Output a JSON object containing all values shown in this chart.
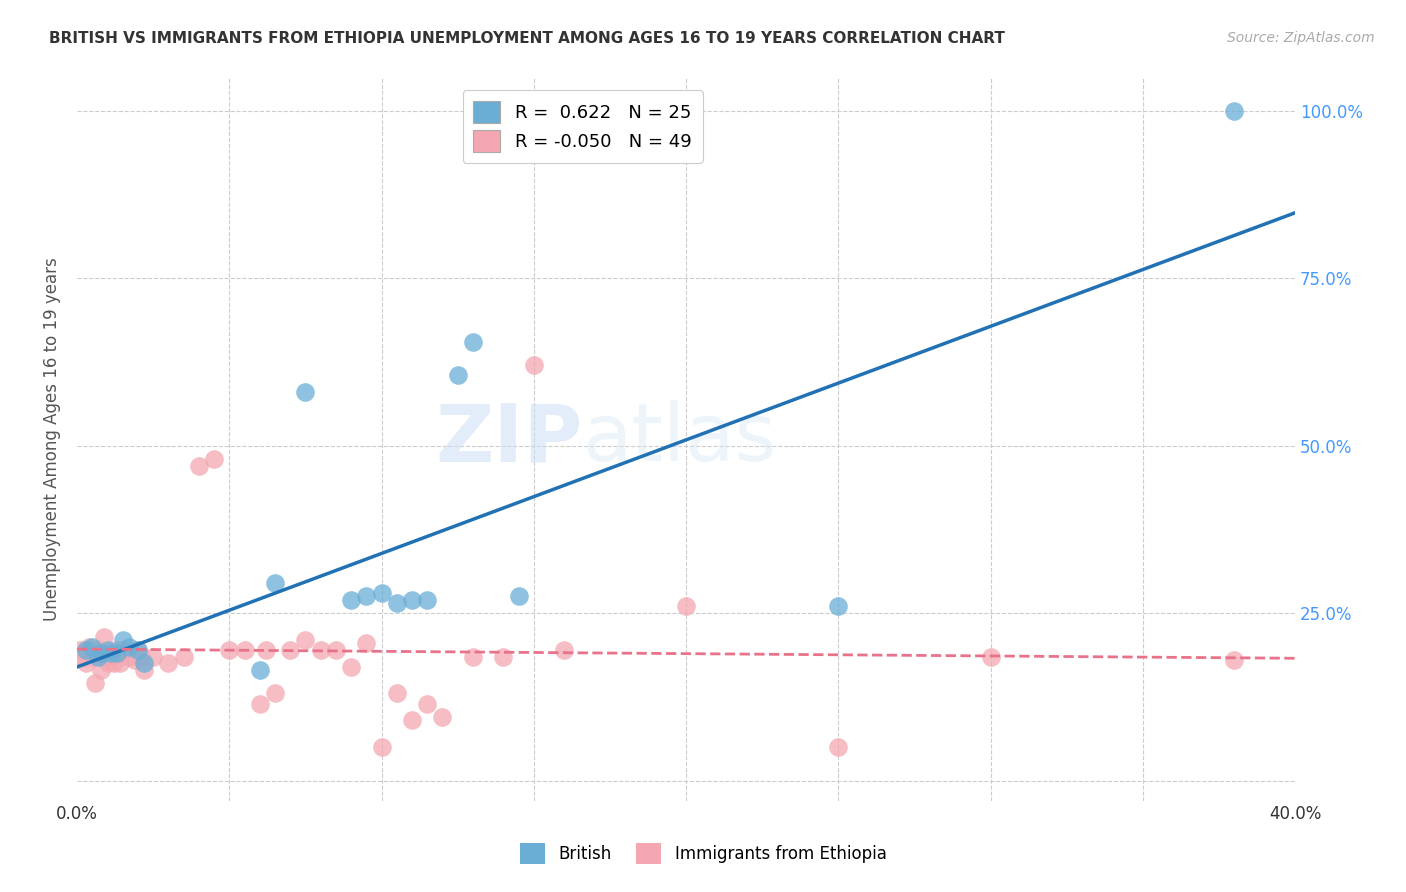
{
  "title": "BRITISH VS IMMIGRANTS FROM ETHIOPIA UNEMPLOYMENT AMONG AGES 16 TO 19 YEARS CORRELATION CHART",
  "source": "Source: ZipAtlas.com",
  "ylabel": "Unemployment Among Ages 16 to 19 years",
  "watermark_zip": "ZIP",
  "watermark_atlas": "atlas",
  "british_R": 0.622,
  "british_N": 25,
  "ethiopia_R": -0.05,
  "ethiopia_N": 49,
  "blue_color": "#6aaed6",
  "pink_color": "#f4a7b0",
  "blue_line_color": "#2171b5",
  "pink_line_color": "#e8728a",
  "grid_color": "#cccccc",
  "xlim": [
    0.0,
    0.4
  ],
  "ylim": [
    -0.03,
    1.05
  ],
  "british_x": [
    0.003,
    0.005,
    0.007,
    0.008,
    0.01,
    0.011,
    0.013,
    0.015,
    0.017,
    0.02,
    0.022,
    0.06,
    0.065,
    0.075,
    0.09,
    0.095,
    0.1,
    0.105,
    0.11,
    0.115,
    0.125,
    0.13,
    0.145,
    0.25,
    0.38
  ],
  "british_y": [
    0.195,
    0.2,
    0.185,
    0.19,
    0.195,
    0.19,
    0.19,
    0.21,
    0.2,
    0.195,
    0.175,
    0.165,
    0.295,
    0.58,
    0.27,
    0.275,
    0.28,
    0.265,
    0.27,
    0.27,
    0.605,
    0.655,
    0.275,
    0.26,
    1.0
  ],
  "ethiopia_x": [
    0.001,
    0.002,
    0.003,
    0.004,
    0.005,
    0.006,
    0.007,
    0.008,
    0.009,
    0.01,
    0.011,
    0.012,
    0.013,
    0.014,
    0.015,
    0.017,
    0.019,
    0.02,
    0.021,
    0.022,
    0.025,
    0.03,
    0.035,
    0.04,
    0.045,
    0.05,
    0.055,
    0.06,
    0.062,
    0.065,
    0.07,
    0.075,
    0.08,
    0.085,
    0.09,
    0.095,
    0.1,
    0.105,
    0.11,
    0.115,
    0.12,
    0.13,
    0.14,
    0.15,
    0.16,
    0.2,
    0.25,
    0.3,
    0.38
  ],
  "ethiopia_y": [
    0.195,
    0.185,
    0.175,
    0.2,
    0.185,
    0.145,
    0.195,
    0.165,
    0.215,
    0.175,
    0.185,
    0.175,
    0.195,
    0.175,
    0.195,
    0.185,
    0.18,
    0.195,
    0.185,
    0.165,
    0.185,
    0.175,
    0.185,
    0.47,
    0.48,
    0.195,
    0.195,
    0.115,
    0.195,
    0.13,
    0.195,
    0.21,
    0.195,
    0.195,
    0.17,
    0.205,
    0.05,
    0.13,
    0.09,
    0.115,
    0.095,
    0.185,
    0.185,
    0.62,
    0.195,
    0.26,
    0.05,
    0.185,
    0.18
  ],
  "yticks_right": [
    0.0,
    0.25,
    0.5,
    0.75,
    1.0
  ],
  "ytick_labels_right": [
    "",
    "25.0%",
    "50.0%",
    "75.0%",
    "100.0%"
  ],
  "xticks": [
    0.0,
    0.05,
    0.1,
    0.15,
    0.2,
    0.25,
    0.3,
    0.35,
    0.4
  ],
  "xtick_labels": [
    "0.0%",
    "",
    "",
    "",
    "",
    "",
    "",
    "",
    "40.0%"
  ]
}
